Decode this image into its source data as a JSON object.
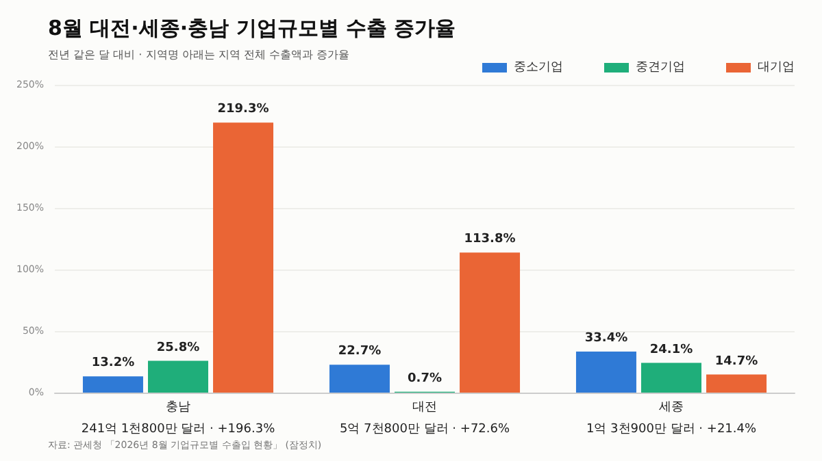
{
  "chart_data": {
    "type": "bar",
    "title": "8월 대전·세종·충남 기업규모별 수출 증가율",
    "subtitle": "전년 같은 달 대비 · 지역명 아래는 지역 전체 수출액과 증가율",
    "categories": [
      "충남\n241억 1천800만 달러 · +196.3%",
      "대전\n5억 7천800만 달러 · +72.6%",
      "세종\n1억 3천900만 달러 · +21.4%"
    ],
    "series": [
      {
        "name": "중소기업",
        "color": "#2f7ad6",
        "values": [
          13.2,
          22.7,
          33.4
        ],
        "value_labels": [
          "13.2%",
          "22.7%",
          "33.4%"
        ]
      },
      {
        "name": "중견기업",
        "color": "#1fae7a",
        "values": [
          25.8,
          0.7,
          24.1
        ],
        "value_labels": [
          "25.8%",
          "0.7%",
          "24.1%"
        ]
      },
      {
        "name": "대기업",
        "color": "#ea6535",
        "values": [
          219.3,
          113.8,
          14.7
        ],
        "value_labels": [
          "219.3%",
          "113.8%",
          "14.7%"
        ]
      }
    ],
    "ylim": [
      0,
      250
    ],
    "yticks": [
      {
        "value": 0,
        "label": "0%"
      },
      {
        "value": 50,
        "label": "50%"
      },
      {
        "value": 100,
        "label": "100%"
      },
      {
        "value": 150,
        "label": "150%"
      },
      {
        "value": 200,
        "label": "200%"
      },
      {
        "value": 250,
        "label": "250%"
      }
    ],
    "grid": "y",
    "legend": "top right",
    "annotations": [
      "자료: 관세청 「2026년 8월 기업규모별 수출입 현황」 (잠정치)"
    ]
  }
}
